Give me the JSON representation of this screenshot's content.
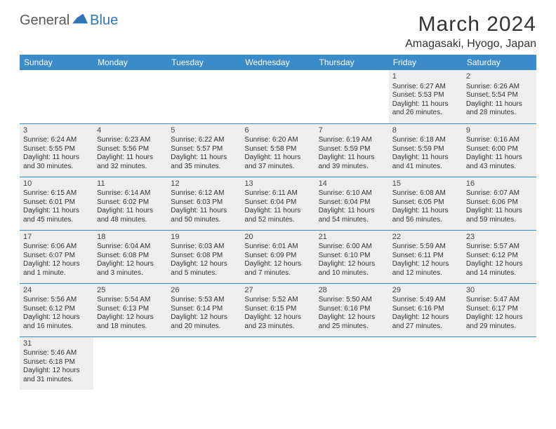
{
  "logo": {
    "part1": "General",
    "part2": "Blue"
  },
  "title": "March 2024",
  "location": "Amagasaki, Hyogo, Japan",
  "colors": {
    "header_bg": "#3b8bc9",
    "header_text": "#ffffff",
    "cell_bg": "#eeeeee",
    "rule": "#3b8bc9",
    "logo_accent": "#2e75b6",
    "logo_grey": "#5a5a5a"
  },
  "weekdays": [
    "Sunday",
    "Monday",
    "Tuesday",
    "Wednesday",
    "Thursday",
    "Friday",
    "Saturday"
  ],
  "weeks": [
    [
      null,
      null,
      null,
      null,
      null,
      {
        "n": "1",
        "sr": "Sunrise: 6:27 AM",
        "ss": "Sunset: 5:53 PM",
        "d1": "Daylight: 11 hours",
        "d2": "and 26 minutes."
      },
      {
        "n": "2",
        "sr": "Sunrise: 6:26 AM",
        "ss": "Sunset: 5:54 PM",
        "d1": "Daylight: 11 hours",
        "d2": "and 28 minutes."
      }
    ],
    [
      {
        "n": "3",
        "sr": "Sunrise: 6:24 AM",
        "ss": "Sunset: 5:55 PM",
        "d1": "Daylight: 11 hours",
        "d2": "and 30 minutes."
      },
      {
        "n": "4",
        "sr": "Sunrise: 6:23 AM",
        "ss": "Sunset: 5:56 PM",
        "d1": "Daylight: 11 hours",
        "d2": "and 32 minutes."
      },
      {
        "n": "5",
        "sr": "Sunrise: 6:22 AM",
        "ss": "Sunset: 5:57 PM",
        "d1": "Daylight: 11 hours",
        "d2": "and 35 minutes."
      },
      {
        "n": "6",
        "sr": "Sunrise: 6:20 AM",
        "ss": "Sunset: 5:58 PM",
        "d1": "Daylight: 11 hours",
        "d2": "and 37 minutes."
      },
      {
        "n": "7",
        "sr": "Sunrise: 6:19 AM",
        "ss": "Sunset: 5:59 PM",
        "d1": "Daylight: 11 hours",
        "d2": "and 39 minutes."
      },
      {
        "n": "8",
        "sr": "Sunrise: 6:18 AM",
        "ss": "Sunset: 5:59 PM",
        "d1": "Daylight: 11 hours",
        "d2": "and 41 minutes."
      },
      {
        "n": "9",
        "sr": "Sunrise: 6:16 AM",
        "ss": "Sunset: 6:00 PM",
        "d1": "Daylight: 11 hours",
        "d2": "and 43 minutes."
      }
    ],
    [
      {
        "n": "10",
        "sr": "Sunrise: 6:15 AM",
        "ss": "Sunset: 6:01 PM",
        "d1": "Daylight: 11 hours",
        "d2": "and 45 minutes."
      },
      {
        "n": "11",
        "sr": "Sunrise: 6:14 AM",
        "ss": "Sunset: 6:02 PM",
        "d1": "Daylight: 11 hours",
        "d2": "and 48 minutes."
      },
      {
        "n": "12",
        "sr": "Sunrise: 6:12 AM",
        "ss": "Sunset: 6:03 PM",
        "d1": "Daylight: 11 hours",
        "d2": "and 50 minutes."
      },
      {
        "n": "13",
        "sr": "Sunrise: 6:11 AM",
        "ss": "Sunset: 6:04 PM",
        "d1": "Daylight: 11 hours",
        "d2": "and 52 minutes."
      },
      {
        "n": "14",
        "sr": "Sunrise: 6:10 AM",
        "ss": "Sunset: 6:04 PM",
        "d1": "Daylight: 11 hours",
        "d2": "and 54 minutes."
      },
      {
        "n": "15",
        "sr": "Sunrise: 6:08 AM",
        "ss": "Sunset: 6:05 PM",
        "d1": "Daylight: 11 hours",
        "d2": "and 56 minutes."
      },
      {
        "n": "16",
        "sr": "Sunrise: 6:07 AM",
        "ss": "Sunset: 6:06 PM",
        "d1": "Daylight: 11 hours",
        "d2": "and 59 minutes."
      }
    ],
    [
      {
        "n": "17",
        "sr": "Sunrise: 6:06 AM",
        "ss": "Sunset: 6:07 PM",
        "d1": "Daylight: 12 hours",
        "d2": "and 1 minute."
      },
      {
        "n": "18",
        "sr": "Sunrise: 6:04 AM",
        "ss": "Sunset: 6:08 PM",
        "d1": "Daylight: 12 hours",
        "d2": "and 3 minutes."
      },
      {
        "n": "19",
        "sr": "Sunrise: 6:03 AM",
        "ss": "Sunset: 6:08 PM",
        "d1": "Daylight: 12 hours",
        "d2": "and 5 minutes."
      },
      {
        "n": "20",
        "sr": "Sunrise: 6:01 AM",
        "ss": "Sunset: 6:09 PM",
        "d1": "Daylight: 12 hours",
        "d2": "and 7 minutes."
      },
      {
        "n": "21",
        "sr": "Sunrise: 6:00 AM",
        "ss": "Sunset: 6:10 PM",
        "d1": "Daylight: 12 hours",
        "d2": "and 10 minutes."
      },
      {
        "n": "22",
        "sr": "Sunrise: 5:59 AM",
        "ss": "Sunset: 6:11 PM",
        "d1": "Daylight: 12 hours",
        "d2": "and 12 minutes."
      },
      {
        "n": "23",
        "sr": "Sunrise: 5:57 AM",
        "ss": "Sunset: 6:12 PM",
        "d1": "Daylight: 12 hours",
        "d2": "and 14 minutes."
      }
    ],
    [
      {
        "n": "24",
        "sr": "Sunrise: 5:56 AM",
        "ss": "Sunset: 6:12 PM",
        "d1": "Daylight: 12 hours",
        "d2": "and 16 minutes."
      },
      {
        "n": "25",
        "sr": "Sunrise: 5:54 AM",
        "ss": "Sunset: 6:13 PM",
        "d1": "Daylight: 12 hours",
        "d2": "and 18 minutes."
      },
      {
        "n": "26",
        "sr": "Sunrise: 5:53 AM",
        "ss": "Sunset: 6:14 PM",
        "d1": "Daylight: 12 hours",
        "d2": "and 20 minutes."
      },
      {
        "n": "27",
        "sr": "Sunrise: 5:52 AM",
        "ss": "Sunset: 6:15 PM",
        "d1": "Daylight: 12 hours",
        "d2": "and 23 minutes."
      },
      {
        "n": "28",
        "sr": "Sunrise: 5:50 AM",
        "ss": "Sunset: 6:16 PM",
        "d1": "Daylight: 12 hours",
        "d2": "and 25 minutes."
      },
      {
        "n": "29",
        "sr": "Sunrise: 5:49 AM",
        "ss": "Sunset: 6:16 PM",
        "d1": "Daylight: 12 hours",
        "d2": "and 27 minutes."
      },
      {
        "n": "30",
        "sr": "Sunrise: 5:47 AM",
        "ss": "Sunset: 6:17 PM",
        "d1": "Daylight: 12 hours",
        "d2": "and 29 minutes."
      }
    ],
    [
      {
        "n": "31",
        "sr": "Sunrise: 5:46 AM",
        "ss": "Sunset: 6:18 PM",
        "d1": "Daylight: 12 hours",
        "d2": "and 31 minutes."
      },
      null,
      null,
      null,
      null,
      null,
      null
    ]
  ]
}
